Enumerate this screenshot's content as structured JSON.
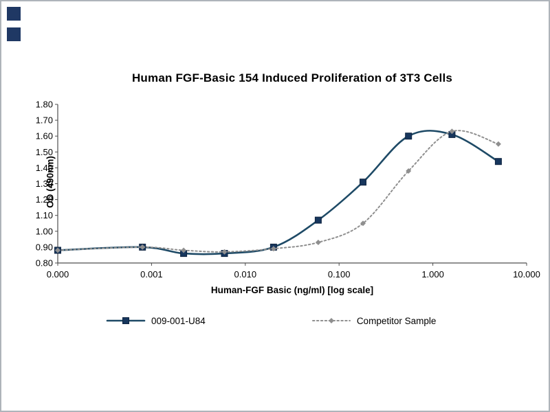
{
  "window": {
    "background": "#ffffff",
    "frame_color": "#aeb4ba"
  },
  "decor": {
    "square_color": "#1f3864"
  },
  "chart_data": {
    "type": "line",
    "title": "Human FGF-Basic 154 Induced Proliferation of 3T3 Cells",
    "xlabel": "Human-FGF Basic (ng/ml) [log scale]",
    "ylabel": "OD (490nm)",
    "x_scale": "log",
    "grid": false,
    "legend_position": "bottom",
    "ylim": [
      0.8,
      1.8
    ],
    "y_tick_labels": [
      "0.80",
      "0.90",
      "1.00",
      "1.10",
      "1.20",
      "1.30",
      "1.40",
      "1.50",
      "1.60",
      "1.70",
      "1.80"
    ],
    "x_tick_labels": [
      "0.000",
      "0.001",
      "0.010",
      "0.100",
      "1.000",
      "10.000"
    ],
    "axis_color": "#4d4d4d",
    "series": [
      {
        "name": "009-001-U84",
        "color": "#1e4a66",
        "marker_color": "#17365d",
        "line_style": "solid",
        "marker": "square",
        "x": [
          0,
          0.0008,
          0.0022,
          0.006,
          0.02,
          0.06,
          0.18,
          0.55,
          1.6,
          5
        ],
        "y": [
          0.88,
          0.9,
          0.86,
          0.86,
          0.9,
          1.07,
          1.31,
          1.6,
          1.61,
          1.44
        ]
      },
      {
        "name": "Competitor Sample",
        "color": "#8f8f8f",
        "marker_color": "#8f8f8f",
        "line_style": "dotted",
        "marker": "diamond",
        "x": [
          0,
          0.0008,
          0.0022,
          0.006,
          0.02,
          0.06,
          0.18,
          0.55,
          1.6,
          5
        ],
        "y": [
          0.88,
          0.9,
          0.88,
          0.87,
          0.89,
          0.93,
          1.05,
          1.38,
          1.63,
          1.55
        ]
      }
    ]
  }
}
